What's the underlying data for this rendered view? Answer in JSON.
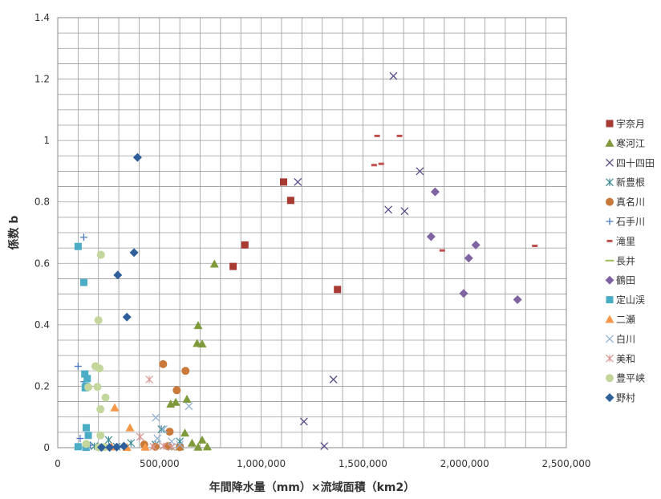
{
  "chart_data": {
    "type": "scatter",
    "xlabel": "年間降水量（mm）×流域面積（km2）",
    "ylabel": "係数 b",
    "xlim": [
      0,
      2500000
    ],
    "ylim": [
      0,
      1.4
    ],
    "x_ticks": [
      0,
      500000,
      1000000,
      1500000,
      2000000,
      2500000
    ],
    "x_tick_labels": [
      "0",
      "500,000",
      "1,000,000",
      "1,500,000",
      "2,000,000",
      "2,500,000"
    ],
    "y_ticks": [
      0,
      0.2,
      0.4,
      0.6,
      0.8,
      1,
      1.2,
      1.4
    ],
    "y_tick_labels": [
      "0",
      "0.2",
      "0.4",
      "0.6",
      "0.8",
      "1",
      "1.2",
      "1.4"
    ],
    "grid": true,
    "minor_grid": true,
    "legend_position": "right",
    "series": [
      {
        "name": "宇奈月",
        "marker": "square",
        "color": "#a83a34",
        "points": [
          [
            862000,
            0.59
          ],
          [
            920000,
            0.66
          ],
          [
            1110000,
            0.865
          ],
          [
            1145000,
            0.805
          ],
          [
            1375000,
            0.515
          ]
        ]
      },
      {
        "name": "寒河江",
        "marker": "triangle",
        "color": "#7f9a3a",
        "points": [
          [
            770000,
            0.598
          ],
          [
            690000,
            0.398
          ],
          [
            685000,
            0.34
          ],
          [
            710000,
            0.338
          ],
          [
            635000,
            0.158
          ],
          [
            580000,
            0.148
          ],
          [
            555000,
            0.142
          ],
          [
            625000,
            0.048
          ],
          [
            660000,
            0.015
          ],
          [
            690000,
            0.002
          ],
          [
            710000,
            0.025
          ],
          [
            735000,
            0.003
          ],
          [
            550000,
            0.005
          ],
          [
            600000,
            0.003
          ]
        ]
      },
      {
        "name": "四十四田",
        "marker": "x",
        "color": "#5b4a86",
        "points": [
          [
            1650000,
            1.21
          ],
          [
            1180000,
            0.865
          ],
          [
            1780000,
            0.9
          ],
          [
            1625000,
            0.775
          ],
          [
            1705000,
            0.77
          ],
          [
            1355000,
            0.222
          ],
          [
            1210000,
            0.085
          ],
          [
            1310000,
            0.005
          ]
        ]
      },
      {
        "name": "新豊根",
        "marker": "asterisk",
        "color": "#3a8b93",
        "points": [
          [
            510000,
            0.06
          ],
          [
            250000,
            0.025
          ],
          [
            360000,
            0.015
          ],
          [
            180000,
            0.005
          ],
          [
            480000,
            0.01
          ],
          [
            600000,
            0.02
          ],
          [
            140000,
            0.002
          ],
          [
            290000,
            0.003
          ]
        ]
      },
      {
        "name": "真名川",
        "marker": "circle",
        "color": "#c97a3a",
        "points": [
          [
            518000,
            0.272
          ],
          [
            628000,
            0.25
          ],
          [
            585000,
            0.187
          ],
          [
            550000,
            0.052
          ],
          [
            425000,
            0.01
          ],
          [
            480000,
            0.003
          ],
          [
            540000,
            0.005
          ],
          [
            600000,
            0.002
          ]
        ]
      },
      {
        "name": "石手川",
        "marker": "plus",
        "color": "#4a77c4",
        "points": [
          [
            128000,
            0.685
          ],
          [
            100000,
            0.265
          ],
          [
            130000,
            0.215
          ],
          [
            150000,
            0.2
          ],
          [
            110000,
            0.03
          ],
          [
            160000,
            0.008
          ]
        ]
      },
      {
        "name": "滝里",
        "marker": "dash",
        "color": "#c0504d",
        "points": [
          [
            1570000,
            1.015
          ],
          [
            1680000,
            1.015
          ],
          [
            1555000,
            0.92
          ],
          [
            1590000,
            0.924
          ],
          [
            1890000,
            0.642
          ],
          [
            2345000,
            0.657
          ]
        ]
      },
      {
        "name": "長井",
        "marker": "hline",
        "color": "#9bbb59",
        "points": []
      },
      {
        "name": "鶴田",
        "marker": "diamond",
        "color": "#8064a2",
        "points": [
          [
            1855000,
            0.833
          ],
          [
            1835000,
            0.687
          ],
          [
            2055000,
            0.66
          ],
          [
            2020000,
            0.617
          ],
          [
            1995000,
            0.502
          ],
          [
            2260000,
            0.482
          ]
        ]
      },
      {
        "name": "定山渓",
        "marker": "square",
        "color": "#4bacc6",
        "points": [
          [
            100000,
            0.655
          ],
          [
            128000,
            0.538
          ],
          [
            133000,
            0.24
          ],
          [
            145000,
            0.225
          ],
          [
            138000,
            0.2
          ],
          [
            135000,
            0.195
          ],
          [
            140000,
            0.065
          ],
          [
            150000,
            0.04
          ],
          [
            100000,
            0.003
          ],
          [
            138000,
            0.001
          ]
        ]
      },
      {
        "name": "二瀬",
        "marker": "triangle",
        "color": "#f79646",
        "points": [
          [
            280000,
            0.13
          ],
          [
            355000,
            0.065
          ],
          [
            265000,
            0.003
          ],
          [
            340000,
            0.001
          ],
          [
            430000,
            0.002
          ]
        ]
      },
      {
        "name": "白川",
        "marker": "x",
        "color": "#95b3d7",
        "points": [
          [
            645000,
            0.135
          ],
          [
            482000,
            0.098
          ],
          [
            520000,
            0.06
          ],
          [
            490000,
            0.03
          ],
          [
            560000,
            0.02
          ],
          [
            600000,
            0.01
          ],
          [
            560000,
            0.002
          ]
        ]
      },
      {
        "name": "美和",
        "marker": "asterisk",
        "color": "#d99694",
        "points": [
          [
            450000,
            0.222
          ],
          [
            405000,
            0.035
          ],
          [
            520000,
            0.005
          ],
          [
            470000,
            0.003
          ],
          [
            560000,
            0.002
          ]
        ]
      },
      {
        "name": "豊平峡",
        "marker": "circle",
        "color": "#c3d69b",
        "points": [
          [
            212000,
            0.628
          ],
          [
            200000,
            0.415
          ],
          [
            185000,
            0.265
          ],
          [
            205000,
            0.258
          ],
          [
            195000,
            0.198
          ],
          [
            150000,
            0.197
          ],
          [
            235000,
            0.163
          ],
          [
            210000,
            0.125
          ],
          [
            210000,
            0.04
          ],
          [
            140000,
            0.012
          ],
          [
            230000,
            0.002
          ],
          [
            200000,
            0.001
          ]
        ]
      },
      {
        "name": "野村",
        "marker": "diamond",
        "color": "#2f5f9a",
        "points": [
          [
            392000,
            0.945
          ],
          [
            375000,
            0.635
          ],
          [
            295000,
            0.562
          ],
          [
            340000,
            0.425
          ],
          [
            325000,
            0.005
          ],
          [
            290000,
            0.002
          ],
          [
            215000,
            0.001
          ],
          [
            255000,
            0.001
          ]
        ]
      }
    ]
  }
}
